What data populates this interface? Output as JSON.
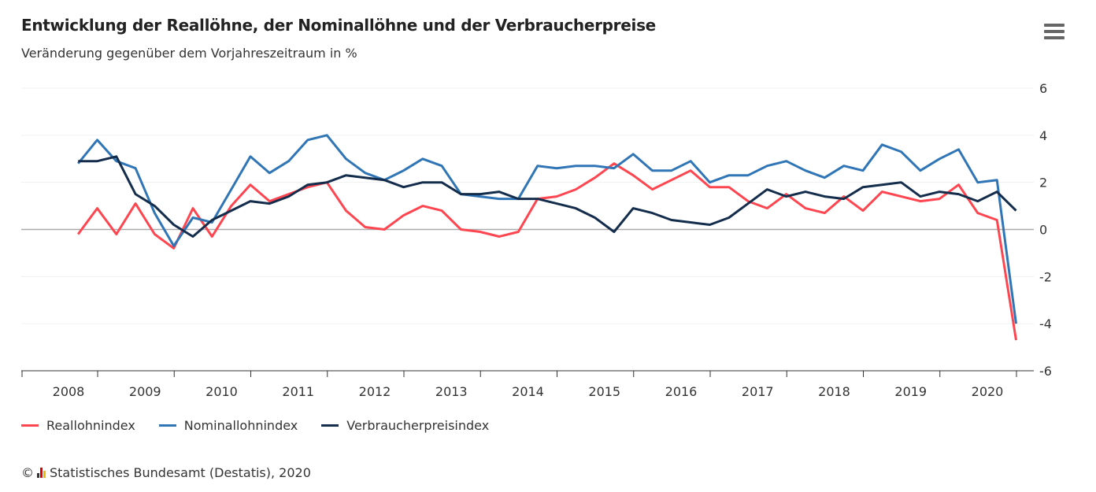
{
  "title": "Entwicklung der Reallöhne, der Nominallöhne und der Verbraucherpreise",
  "subtitle": "Veränderung gegenüber dem Vorjahreszeitraum in %",
  "menu_icon": "hamburger-menu-icon",
  "footer": {
    "copyright": "©",
    "text": "Statistisches Bundesamt (Destatis), 2020"
  },
  "chart_data": {
    "type": "line",
    "title": "Entwicklung der Reallöhne, der Nominallöhne und der Verbraucherpreise",
    "subtitle": "Veränderung gegenüber dem Vorjahreszeitraum in %",
    "x_start": "2008 Q1",
    "frequency": "quarterly",
    "x_ticks": [
      "2008",
      "2009",
      "2010",
      "2011",
      "2012",
      "2013",
      "2014",
      "2015",
      "2016",
      "2017",
      "2018",
      "2019",
      "2020"
    ],
    "y_ticks": [
      6,
      4,
      2,
      0,
      -2,
      -4,
      -6
    ],
    "ylim": [
      -6,
      6
    ],
    "grid": true,
    "legend": "bottom-left",
    "series": [
      {
        "name": "Reallohnindex",
        "color": "#ff4650",
        "values": [
          -0.2,
          0.9,
          -0.2,
          1.1,
          -0.2,
          -0.8,
          0.9,
          -0.3,
          1.0,
          1.9,
          1.2,
          1.5,
          1.8,
          2.0,
          0.8,
          0.1,
          0.0,
          0.6,
          1.0,
          0.8,
          0.0,
          -0.1,
          -0.3,
          -0.1,
          1.3,
          1.4,
          1.7,
          2.2,
          2.8,
          2.3,
          1.7,
          2.1,
          2.5,
          1.8,
          1.8,
          1.2,
          0.9,
          1.5,
          0.9,
          0.7,
          1.4,
          0.8,
          1.6,
          1.4,
          1.2,
          1.3,
          1.9,
          0.7,
          0.4,
          -4.7
        ]
      },
      {
        "name": "Nominallohnindex",
        "color": "#3075b5",
        "values": [
          2.8,
          3.8,
          2.9,
          2.6,
          0.7,
          -0.7,
          0.5,
          0.3,
          1.7,
          3.1,
          2.4,
          2.9,
          3.8,
          4.0,
          3.0,
          2.4,
          2.1,
          2.5,
          3.0,
          2.7,
          1.5,
          1.4,
          1.3,
          1.3,
          2.7,
          2.6,
          2.7,
          2.7,
          2.6,
          3.2,
          2.5,
          2.5,
          2.9,
          2.0,
          2.3,
          2.3,
          2.7,
          2.9,
          2.5,
          2.2,
          2.7,
          2.5,
          3.6,
          3.3,
          2.5,
          3.0,
          3.4,
          2.0,
          2.1,
          -4.0
        ]
      },
      {
        "name": "Verbraucherpreisindex",
        "color": "#142d4c",
        "values": [
          2.9,
          2.9,
          3.1,
          1.5,
          1.0,
          0.2,
          -0.3,
          0.4,
          0.8,
          1.2,
          1.1,
          1.4,
          1.9,
          2.0,
          2.3,
          2.2,
          2.1,
          1.8,
          2.0,
          2.0,
          1.5,
          1.5,
          1.6,
          1.3,
          1.3,
          1.1,
          0.9,
          0.5,
          -0.1,
          0.9,
          0.7,
          0.4,
          0.3,
          0.2,
          0.5,
          1.1,
          1.7,
          1.4,
          1.6,
          1.4,
          1.3,
          1.8,
          1.9,
          2.0,
          1.4,
          1.6,
          1.5,
          1.2,
          1.6,
          0.8
        ]
      }
    ]
  }
}
